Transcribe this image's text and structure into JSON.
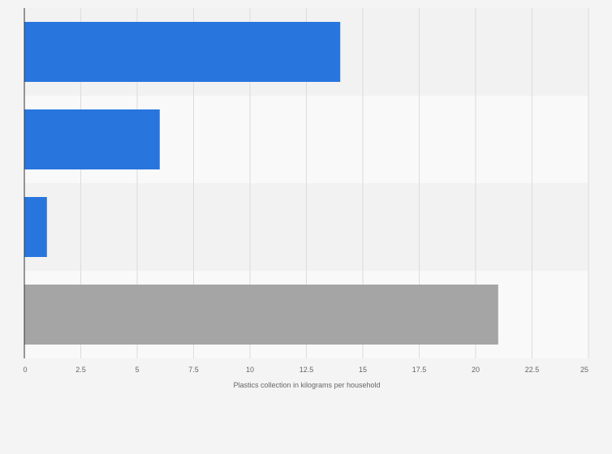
{
  "chart_data": {
    "type": "bar",
    "orientation": "horizontal",
    "title": "",
    "xlabel": "Plastics collection in kilograms per household",
    "ylabel": "",
    "xlim": [
      0,
      25
    ],
    "x_ticks": [
      0,
      2.5,
      5,
      7.5,
      10,
      12.5,
      15,
      17.5,
      20,
      22.5,
      25
    ],
    "x_tick_labels": [
      "0",
      "2.5",
      "5",
      "7.5",
      "10",
      "12.5",
      "15",
      "17.5",
      "20",
      "22.5",
      "25"
    ],
    "categories": [
      "",
      "",
      "",
      ""
    ],
    "values": [
      14,
      6,
      1,
      21
    ],
    "bar_colors": [
      "#2875de",
      "#2875de",
      "#2875de",
      "#a5a5a5"
    ],
    "grid": true,
    "legend": "none"
  }
}
